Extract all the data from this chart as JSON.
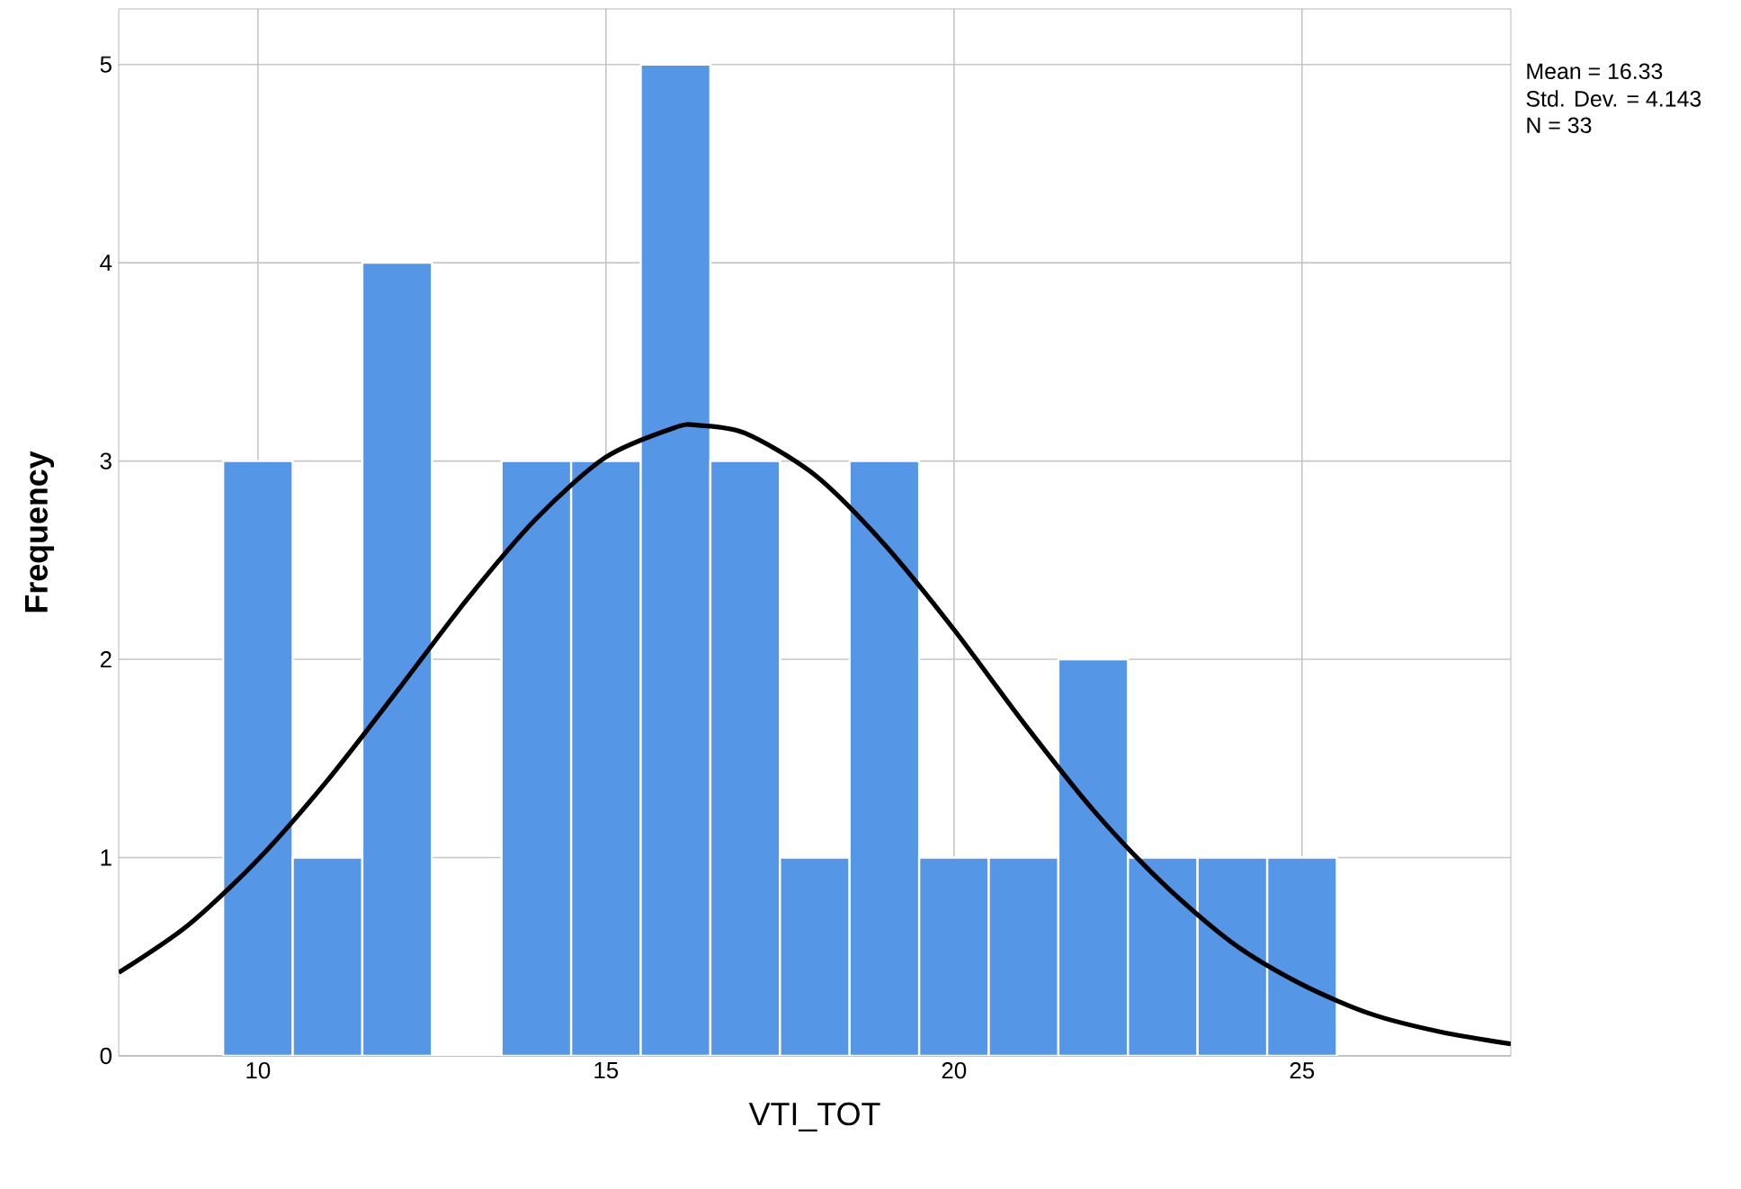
{
  "chart_data": {
    "type": "histogram",
    "xlabel": "VTI_TOT",
    "ylabel": "Frequency",
    "annotations": [
      "Mean = 16.33",
      "Std. Dev. = 4.143",
      "N = 33"
    ],
    "xlim": [
      8,
      28
    ],
    "ylim": [
      0,
      5.28
    ],
    "xticks": [
      10,
      15,
      20,
      25
    ],
    "yticks": [
      0,
      1,
      2,
      3,
      4,
      5
    ],
    "grid": true,
    "series": [
      {
        "color": "#5596e6",
        "bins": [
          9.5,
          10.5,
          11.5,
          12.5,
          13.5,
          14.5,
          15.5,
          16.5,
          17.5,
          18.5,
          19.5,
          20.5,
          21.5,
          22.5,
          23.5,
          24.5,
          25.5
        ],
        "values": [
          3,
          1,
          4,
          0,
          3,
          3,
          5,
          3,
          1,
          3,
          1,
          1,
          2,
          1,
          1,
          1
        ]
      },
      {
        "type": "line",
        "color": "#000000",
        "x": [
          8,
          9,
          10,
          11,
          12,
          13,
          14,
          15,
          16,
          16.33,
          17,
          18,
          19,
          20,
          21,
          22,
          23,
          24,
          25,
          26,
          27,
          28
        ],
        "values": [
          0.42,
          0.66,
          0.99,
          1.39,
          1.84,
          2.3,
          2.71,
          3.02,
          3.17,
          3.18,
          3.14,
          2.93,
          2.58,
          2.15,
          1.68,
          1.24,
          0.87,
          0.57,
          0.36,
          0.21,
          0.12,
          0.06
        ]
      }
    ]
  }
}
